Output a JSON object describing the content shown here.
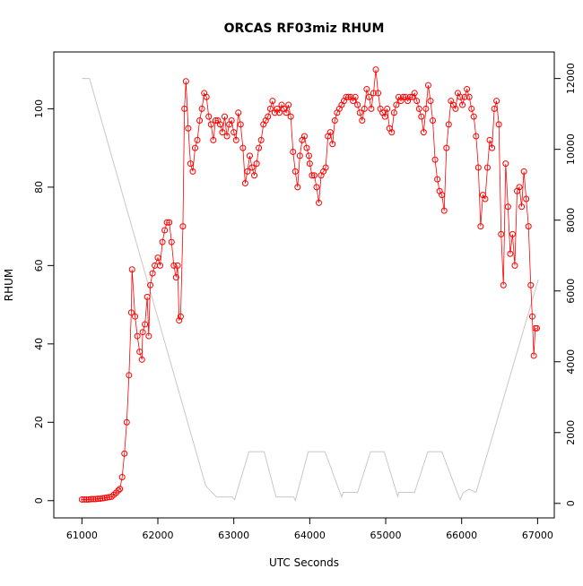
{
  "chart_data": {
    "type": "scatter",
    "title": "ORCAS RF03miz RHUM",
    "xlabel": "UTC Seconds",
    "ylabel": "RHUM",
    "xlim": [
      60630,
      67220
    ],
    "ylim": [
      -4.4,
      114.5
    ],
    "y2lim": [
      -410,
      12750
    ],
    "xticks": [
      61000,
      62000,
      63000,
      64000,
      65000,
      66000,
      67000
    ],
    "yticks": [
      0,
      20,
      40,
      60,
      80,
      100
    ],
    "y2ticks": [
      0,
      2000,
      4000,
      6000,
      8000,
      10000,
      12000
    ],
    "grid": false,
    "colors": {
      "rhum": "#ff0000",
      "secondary": "#c8c8c8"
    },
    "series": [
      {
        "x": [
          61000,
          61030,
          61060,
          61090,
          61120,
          61150,
          61180,
          61210,
          61240,
          61270,
          61300,
          61330,
          61360,
          61390,
          61420,
          61450,
          61480,
          61500,
          61530,
          61560,
          61590,
          61620,
          61650,
          61660,
          61700,
          61730,
          61760,
          61790,
          61800,
          61830,
          61860,
          61880,
          61900,
          61930,
          61960,
          62000,
          62030,
          62060,
          62090,
          62120,
          62150,
          62180,
          62210,
          62240,
          62260,
          62280,
          62300,
          62330,
          62350,
          62370,
          62400,
          62430,
          62460,
          62490,
          62520,
          62550,
          62580,
          62610,
          62640,
          62670,
          62700,
          62730,
          62760,
          62790,
          62820,
          62850,
          62880,
          62910,
          62940,
          62970,
          63000,
          63030,
          63060,
          63090,
          63120,
          63150,
          63180,
          63210,
          63240,
          63270,
          63300,
          63330,
          63360,
          63390,
          63420,
          63450,
          63480,
          63510,
          63540,
          63570,
          63600,
          63630,
          63660,
          63690,
          63720,
          63750,
          63780,
          63810,
          63840,
          63870,
          63900,
          63930,
          63960,
          63990,
          64000,
          64030,
          64060,
          64090,
          64120,
          64150,
          64180,
          64210,
          64240,
          64270,
          64300,
          64330,
          64360,
          64390,
          64420,
          64450,
          64480,
          64510,
          64540,
          64570,
          64600,
          64630,
          64660,
          64690,
          64720,
          64750,
          64780,
          64810,
          64840,
          64870,
          64900,
          64930,
          64960,
          64990,
          65020,
          65050,
          65080,
          65110,
          65140,
          65170,
          65200,
          65230,
          65260,
          65290,
          65320,
          65350,
          65380,
          65410,
          65440,
          65470,
          65500,
          65530,
          65560,
          65590,
          65620,
          65650,
          65680,
          65710,
          65740,
          65770,
          65800,
          65830,
          65860,
          65890,
          65920,
          65950,
          65980,
          66010,
          66040,
          66070,
          66100,
          66130,
          66160,
          66190,
          66220,
          66250,
          66280,
          66310,
          66340,
          66370,
          66400,
          66430,
          66460,
          66490,
          66520,
          66550,
          66580,
          66610,
          66640,
          66670,
          66700,
          66730,
          66760,
          66790,
          66820,
          66850,
          66880,
          66910,
          66930,
          66950,
          66970,
          66990
        ],
        "y": [
          0.3,
          0.3,
          0.3,
          0.3,
          0.4,
          0.4,
          0.4,
          0.5,
          0.5,
          0.6,
          0.7,
          0.8,
          0.9,
          1,
          1.5,
          2,
          2.6,
          3,
          6,
          12,
          20,
          32,
          48,
          59,
          47,
          42,
          38,
          36,
          43,
          45,
          52,
          42,
          55,
          58,
          60,
          62,
          60,
          66,
          69,
          71,
          71,
          66,
          60,
          57,
          60,
          46,
          47,
          70,
          100,
          107,
          95,
          86,
          84,
          90,
          92,
          97,
          100,
          104,
          103,
          98,
          96,
          92,
          97,
          97,
          96,
          94,
          98,
          93,
          96,
          97,
          94,
          92,
          99,
          96,
          90,
          81,
          84,
          88,
          85,
          83,
          86,
          90,
          92,
          96,
          97,
          98,
          100,
          102,
          99,
          100,
          99,
          101,
          100,
          99,
          101,
          98,
          89,
          84,
          80,
          88,
          92,
          93,
          90,
          88,
          86,
          83,
          83,
          80,
          76,
          83,
          84,
          85,
          93,
          94,
          91,
          97,
          99,
          100,
          101,
          102,
          103,
          103,
          103,
          102,
          103,
          101,
          99,
          97,
          100,
          105,
          103,
          100,
          104,
          110,
          104,
          100,
          99,
          98,
          100,
          95,
          94,
          99,
          101,
          103,
          102,
          103,
          103,
          102,
          103,
          103,
          104,
          102,
          100,
          98,
          94,
          100,
          106,
          102,
          97,
          87,
          82,
          79,
          78,
          74,
          90,
          96,
          102,
          101,
          100,
          104,
          103,
          101,
          103,
          105,
          103,
          100,
          98,
          93,
          85,
          70,
          78,
          77,
          85,
          92,
          90,
          100,
          102,
          96,
          68,
          55,
          86,
          75,
          63,
          68,
          60,
          79,
          80,
          75,
          84,
          77,
          70,
          55,
          47,
          37,
          44,
          44
        ]
      },
      {
        "axis": "right",
        "x": [
          61000,
          61100,
          62630,
          62770,
          62980,
          63010,
          63200,
          63400,
          63555,
          63790,
          63810,
          63980,
          64200,
          64420,
          64440,
          64630,
          64800,
          64980,
          65160,
          65170,
          65380,
          65555,
          65740,
          65980,
          66020,
          66100,
          66190,
          67010
        ],
        "y": [
          12000,
          12000,
          500,
          180,
          180,
          100,
          1460,
          1460,
          180,
          180,
          80,
          1460,
          1460,
          180,
          310,
          310,
          1460,
          1460,
          180,
          310,
          310,
          1460,
          1460,
          100,
          310,
          400,
          310,
          6330
        ]
      }
    ]
  }
}
